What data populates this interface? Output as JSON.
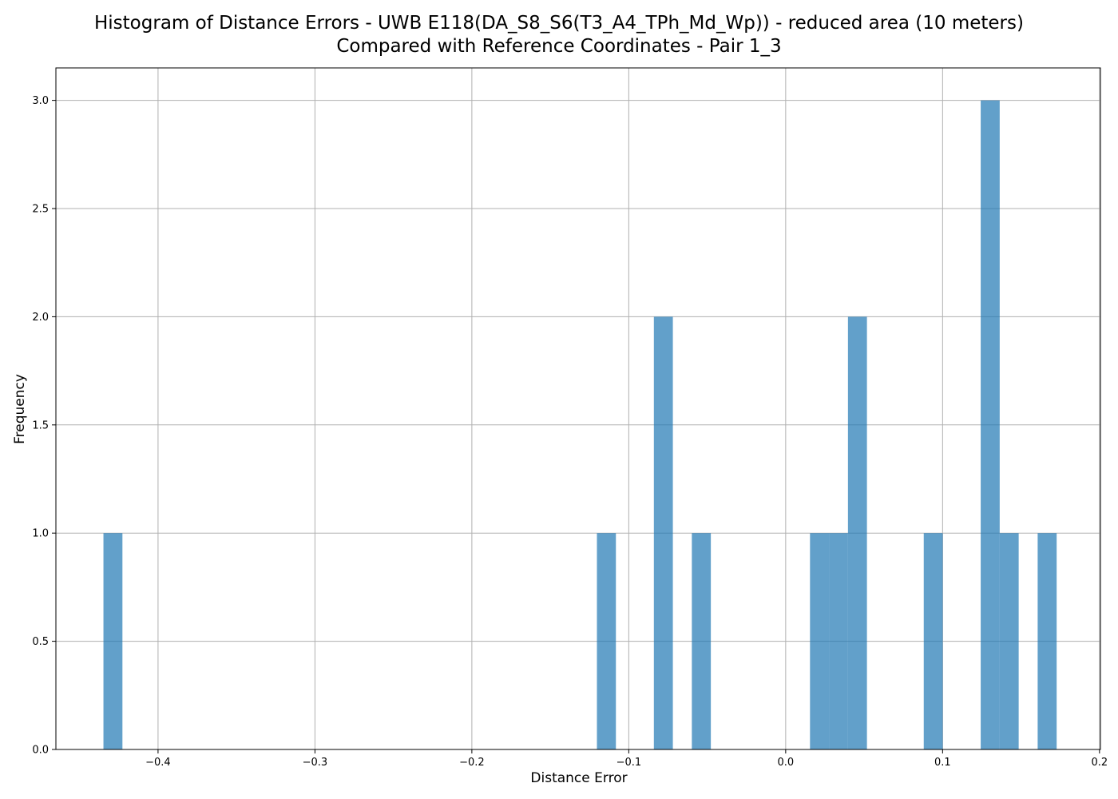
{
  "chart_data": {
    "type": "bar",
    "subtype": "histogram",
    "title": "Histogram of Distance Errors - UWB E118(DA_S8_S6(T3_A4_TPh_Md_Wp)) - reduced area (10 meters)",
    "subtitle": "Compared with Reference Coordinates - Pair 1_3",
    "xlabel": "Distance Error",
    "ylabel": "Frequency",
    "xlim": [
      -0.4651,
      0.2006
    ],
    "ylim": [
      0,
      3.15
    ],
    "grid": true,
    "bar_color": "#1f77b4",
    "bar_opacity": 0.7,
    "xticks": [
      -0.4,
      -0.3,
      -0.2,
      -0.1,
      0.0,
      0.1,
      0.2
    ],
    "xtick_labels": [
      "−0.4",
      "−0.3",
      "−0.2",
      "−0.1",
      "0.0",
      "0.1",
      "0.2"
    ],
    "yticks": [
      0.0,
      0.5,
      1.0,
      1.5,
      2.0,
      2.5,
      3.0
    ],
    "ytick_labels": [
      "0.0",
      "0.5",
      "1.0",
      "1.5",
      "2.0",
      "2.5",
      "3.0"
    ],
    "bins": [
      {
        "x0": -0.4348,
        "x1": -0.4227,
        "count": 1
      },
      {
        "x0": -0.1203,
        "x1": -0.1082,
        "count": 1
      },
      {
        "x0": -0.084,
        "x1": -0.0719,
        "count": 2
      },
      {
        "x0": -0.0598,
        "x1": -0.0477,
        "count": 1
      },
      {
        "x0": 0.0155,
        "x1": 0.0276,
        "count": 1
      },
      {
        "x0": 0.0276,
        "x1": 0.0397,
        "count": 1
      },
      {
        "x0": 0.0397,
        "x1": 0.0518,
        "count": 2
      },
      {
        "x0": 0.088,
        "x1": 0.1001,
        "count": 1
      },
      {
        "x0": 0.1243,
        "x1": 0.1364,
        "count": 3
      },
      {
        "x0": 0.1364,
        "x1": 0.1485,
        "count": 1
      },
      {
        "x0": 0.1606,
        "x1": 0.1727,
        "count": 1
      }
    ]
  }
}
